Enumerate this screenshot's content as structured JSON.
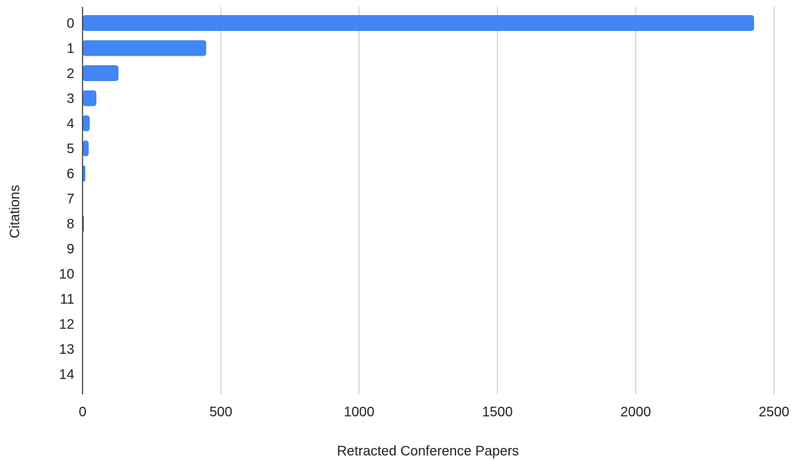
{
  "chart_data": {
    "type": "bar",
    "orientation": "horizontal",
    "categories": [
      "0",
      "1",
      "2",
      "3",
      "4",
      "5",
      "6",
      "7",
      "8",
      "9",
      "10",
      "11",
      "12",
      "13",
      "14"
    ],
    "series": [
      {
        "color": "#4285f4",
        "values": [
          2428,
          447,
          130,
          50,
          26,
          22,
          10,
          0,
          5,
          0,
          0,
          0,
          0,
          0,
          0
        ]
      }
    ],
    "xlabel": "Retracted Conference Papers",
    "ylabel": "Citations",
    "xlim": [
      0,
      2500
    ],
    "xticks": [
      0,
      500,
      1000,
      1500,
      2000,
      2500
    ],
    "xtick_labels": [
      "0",
      "500",
      "1000",
      "1500",
      "2000",
      "2500"
    ],
    "grid": true,
    "legend": "none"
  },
  "colors": {
    "bar": "#4285f4",
    "gridline": "#cccccc",
    "axis": "#333333",
    "text": "#222222"
  }
}
